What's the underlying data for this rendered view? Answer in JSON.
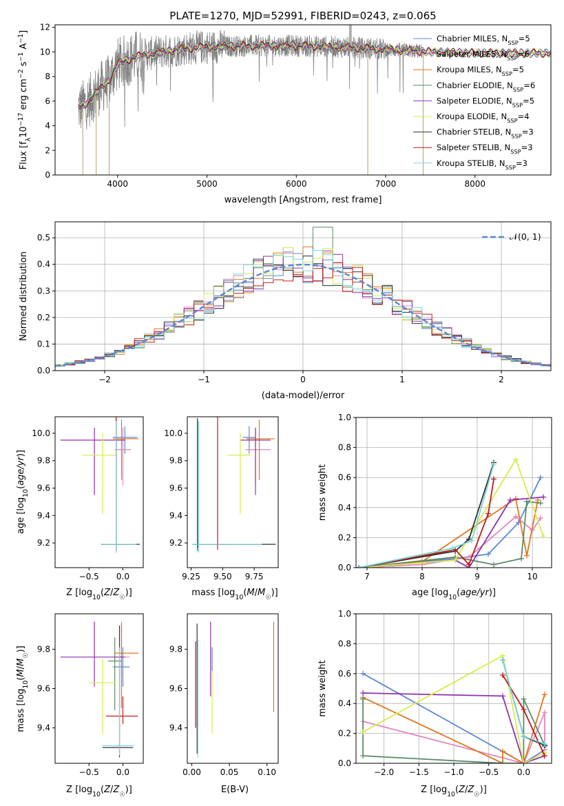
{
  "title": "PLATE=1270, MJD=52991, FIBERID=0243, z=0.065",
  "colors": {
    "Chabrier MILES": "#5b87d6",
    "Salpeter MILES": "#e586b8",
    "Kroupa MILES": "#e0771e",
    "Chabrier ELODIE": "#5a8a64",
    "Salpeter ELODIE": "#8e2fae",
    "Kroupa ELODIE": "#d8ec4c",
    "Chabrier STELIB": "#303030",
    "Salpeter STELIB": "#c21818",
    "Kroupa STELIB": "#78d5da",
    "data": "#808080",
    "gauss": "#5b87d6"
  },
  "chart_data": [
    {
      "id": "spectrum",
      "type": "line",
      "xlabel": "wavelength [Angstrom, rest frame]",
      "ylabel": "Flux [f_λ10^-17 erg cm^-2 s^-1 A^-1]",
      "xlim": [
        3300,
        8850
      ],
      "ylim": [
        0,
        12.2
      ],
      "xticks": [
        4000,
        5000,
        6000,
        7000,
        8000
      ],
      "yticks": [
        0,
        2,
        4,
        6,
        8,
        10,
        12
      ],
      "legend_loc": "right",
      "legend": [
        {
          "name": "Chabrier MILES",
          "nssp": "5"
        },
        {
          "name": "Salpeter MILES",
          "nssp": "6"
        },
        {
          "name": "Kroupa MILES",
          "nssp": "5"
        },
        {
          "name": "Chabrier ELODIE",
          "nssp": "6"
        },
        {
          "name": "Salpeter ELODIE",
          "nssp": "5"
        },
        {
          "name": "Kroupa ELODIE",
          "nssp": "4"
        },
        {
          "name": "Chabrier STELIB",
          "nssp": "3"
        },
        {
          "name": "Salpeter STELIB",
          "nssp": "3"
        },
        {
          "name": "Kroupa STELIB",
          "nssp": "3"
        }
      ],
      "continuum": {
        "x": [
          3600,
          3700,
          3800,
          3900,
          4000,
          4200,
          4400,
          4600,
          4800,
          5000,
          5500,
          6000,
          6500,
          7000,
          7500,
          8000,
          8500,
          8850
        ],
        "y": [
          5.5,
          6.2,
          7.0,
          7.6,
          9.0,
          9.6,
          9.9,
          10.1,
          10.3,
          10.4,
          10.5,
          10.5,
          10.4,
          10.2,
          10.0,
          9.9,
          9.9,
          9.9
        ]
      },
      "model_range": [
        3560,
        8850
      ],
      "data_range": [
        3560,
        7420
      ]
    },
    {
      "id": "residuals",
      "type": "bar",
      "xlabel": "(data-model)/error",
      "ylabel": "Normed distribution",
      "xlim": [
        -2.5,
        2.5
      ],
      "ylim": [
        0,
        0.56
      ],
      "xticks": [
        -2,
        -1,
        0,
        1,
        2
      ],
      "yticks": [
        0.0,
        0.1,
        0.2,
        0.3,
        0.4,
        0.5
      ],
      "legend_label": "𝒩(0, 1)",
      "legend_loc": "upper right",
      "bin_width": 0.1
    },
    {
      "id": "age_vs_Z",
      "type": "scatter",
      "xlabel": "Z [log10(Z/Z☉)]",
      "ylabel": "age  [log10(age/yr)]",
      "xlim": [
        -1.0,
        0.3
      ],
      "ylim": [
        9.02,
        10.12
      ],
      "xticks": [
        -0.5,
        0.0
      ],
      "yticks": [
        9.2,
        9.4,
        9.6,
        9.8,
        10.0
      ],
      "points": [
        {
          "model": "Chabrier MILES",
          "x": 0.03,
          "y": 9.97,
          "xerr": [
            0.18,
            0.18
          ],
          "yerr": [
            0.12,
            0.08
          ]
        },
        {
          "model": "Salpeter MILES",
          "x": 0.0,
          "y": 9.88,
          "xerr": [
            0.12,
            0.12
          ],
          "yerr": [
            0.26,
            0.16
          ]
        },
        {
          "model": "Kroupa MILES",
          "x": -0.02,
          "y": 9.96,
          "xerr": [
            0.12,
            0.25
          ],
          "yerr": [
            0.3,
            0.14
          ]
        },
        {
          "model": "Chabrier ELODIE",
          "x": -0.1,
          "y": 9.19,
          "xerr": [
            0.22,
            0.3
          ],
          "yerr": [
            0.05,
            0.9
          ]
        },
        {
          "model": "Salpeter ELODIE",
          "x": -0.42,
          "y": 9.95,
          "xerr": [
            0.5,
            0.45
          ],
          "yerr": [
            0.4,
            0.09
          ]
        },
        {
          "model": "Kroupa ELODIE",
          "x": -0.3,
          "y": 9.84,
          "xerr": [
            0.3,
            0.2
          ],
          "yerr": [
            0.43,
            0.16
          ]
        },
        {
          "model": "Chabrier STELIB",
          "x": -0.1,
          "y": 9.19,
          "xerr": [
            0.2,
            0.35
          ],
          "yerr": [
            0.03,
            0.92
          ]
        },
        {
          "model": "Salpeter STELIB",
          "x": -0.1,
          "y": 9.19,
          "xerr": [
            0.12,
            0.2
          ],
          "yerr": [
            0.04,
            0.93
          ]
        },
        {
          "model": "Kroupa STELIB",
          "x": -0.1,
          "y": 9.19,
          "xerr": [
            0.2,
            0.3
          ],
          "yerr": [
            0.06,
            0.9
          ]
        }
      ]
    },
    {
      "id": "age_vs_mass",
      "type": "scatter",
      "xlabel": "mass [log10(M/M☉)]",
      "ylabel": "",
      "xlim": [
        9.22,
        9.94
      ],
      "ylim": [
        9.02,
        10.12
      ],
      "xticks": [
        9.25,
        9.5,
        9.75
      ],
      "yticks": [
        9.2,
        9.4,
        9.6,
        9.8,
        10.0
      ],
      "points": [
        {
          "model": "Chabrier MILES",
          "x": 9.71,
          "y": 9.97,
          "xerr": [
            0.05,
            0.05
          ],
          "yerr": [
            0.12,
            0.08
          ]
        },
        {
          "model": "Salpeter MILES",
          "x": 9.76,
          "y": 9.88,
          "xerr": [
            0.08,
            0.12
          ],
          "yerr": [
            0.26,
            0.16
          ]
        },
        {
          "model": "Kroupa MILES",
          "x": 9.79,
          "y": 9.96,
          "xerr": [
            0.1,
            0.12
          ],
          "yerr": [
            0.3,
            0.14
          ]
        },
        {
          "model": "Chabrier ELODIE",
          "x": 9.3,
          "y": 9.19,
          "xerr": [
            0.03,
            0.5
          ],
          "yerr": [
            0.05,
            0.9
          ]
        },
        {
          "model": "Salpeter ELODIE",
          "x": 9.76,
          "y": 9.95,
          "xerr": [
            0.12,
            0.12
          ],
          "yerr": [
            0.4,
            0.09
          ]
        },
        {
          "model": "Kroupa ELODIE",
          "x": 9.64,
          "y": 9.84,
          "xerr": [
            0.1,
            0.08
          ],
          "yerr": [
            0.43,
            0.16
          ]
        },
        {
          "model": "Chabrier STELIB",
          "x": 9.3,
          "y": 9.19,
          "xerr": [
            0.04,
            0.62
          ],
          "yerr": [
            0.03,
            0.92
          ]
        },
        {
          "model": "Salpeter STELIB",
          "x": 9.46,
          "y": 9.19,
          "xerr": [
            0.04,
            0.1
          ],
          "yerr": [
            0.04,
            0.93
          ]
        },
        {
          "model": "Kroupa STELIB",
          "x": 9.31,
          "y": 9.19,
          "xerr": [
            0.05,
            0.5
          ],
          "yerr": [
            0.06,
            0.9
          ]
        }
      ]
    },
    {
      "id": "weight_vs_age",
      "type": "line",
      "xlabel": "age  [log10(age/yr)]",
      "ylabel": "mass weight",
      "xlim": [
        6.8,
        10.35
      ],
      "ylim": [
        0,
        1.0
      ],
      "xticks": [
        7,
        8,
        9,
        10
      ],
      "yticks": [
        0.0,
        0.2,
        0.4,
        0.6,
        0.8,
        1.0
      ],
      "series": [
        {
          "model": "Chabrier MILES",
          "x": [
            6.85,
            8.6,
            9.2,
            9.75,
            10.15
          ],
          "y": [
            0.0,
            0.06,
            0.09,
            0.3,
            0.6
          ]
        },
        {
          "model": "Salpeter MILES",
          "x": [
            6.85,
            8.0,
            8.85,
            9.7,
            10.0,
            10.15
          ],
          "y": [
            0.0,
            0.02,
            0.07,
            0.34,
            0.25,
            0.33
          ]
        },
        {
          "model": "Kroupa MILES",
          "x": [
            6.85,
            8.0,
            9.7,
            9.9,
            10.1
          ],
          "y": [
            0.0,
            0.04,
            0.46,
            0.08,
            0.45
          ]
        },
        {
          "model": "Chabrier ELODIE",
          "x": [
            6.85,
            8.6,
            9.3,
            9.8,
            9.9,
            10.15
          ],
          "y": [
            0.0,
            0.07,
            0.02,
            0.06,
            0.44,
            0.43
          ]
        },
        {
          "model": "Salpeter ELODIE",
          "x": [
            6.85,
            8.6,
            8.85,
            9.6,
            10.2
          ],
          "y": [
            0.0,
            0.05,
            0.0,
            0.45,
            0.47
          ]
        },
        {
          "model": "Kroupa ELODIE",
          "x": [
            6.85,
            8.6,
            9.7,
            10.2
          ],
          "y": [
            0.0,
            0.05,
            0.72,
            0.21
          ]
        },
        {
          "model": "Chabrier STELIB",
          "x": [
            6.85,
            8.6,
            8.85,
            9.3
          ],
          "y": [
            0.0,
            0.11,
            0.19,
            0.7
          ]
        },
        {
          "model": "Salpeter STELIB",
          "x": [
            6.85,
            8.6,
            8.85,
            9.2,
            9.3
          ],
          "y": [
            0.0,
            0.12,
            0.02,
            0.36,
            0.59
          ]
        },
        {
          "model": "Kroupa STELIB",
          "x": [
            6.85,
            8.55,
            8.9,
            9.3
          ],
          "y": [
            0.0,
            0.13,
            0.18,
            0.69
          ]
        }
      ]
    },
    {
      "id": "mass_vs_Z",
      "type": "scatter",
      "xlabel": "Z [log10(Z/Z☉)]",
      "ylabel": "mass [log10(M/M☉)]",
      "xlim": [
        -1.0,
        0.3
      ],
      "ylim": [
        9.22,
        9.98
      ],
      "xticks": [
        -0.5,
        0.0
      ],
      "yticks": [
        9.4,
        9.6,
        9.8
      ],
      "points": [
        {
          "model": "Chabrier MILES",
          "x": 0.0,
          "y": 9.71,
          "xerr": [
            0.15,
            0.1
          ],
          "yerr": [
            0.1,
            0.1
          ]
        },
        {
          "model": "Salpeter MILES",
          "x": -0.02,
          "y": 9.76,
          "xerr": [
            0.1,
            0.12
          ],
          "yerr": [
            0.1,
            0.18
          ]
        },
        {
          "model": "Kroupa MILES",
          "x": -0.02,
          "y": 9.78,
          "xerr": [
            0.1,
            0.25
          ],
          "yerr": [
            0.28,
            0.15
          ]
        },
        {
          "model": "Chabrier ELODIE",
          "x": -0.12,
          "y": 9.74,
          "xerr": [
            0.1,
            0.1
          ],
          "yerr": [
            0.25,
            0.12
          ]
        },
        {
          "model": "Salpeter ELODIE",
          "x": -0.42,
          "y": 9.76,
          "xerr": [
            0.5,
            0.45
          ],
          "yerr": [
            0.15,
            0.18
          ]
        },
        {
          "model": "Kroupa ELODIE",
          "x": -0.3,
          "y": 9.63,
          "xerr": [
            0.2,
            0.2
          ],
          "yerr": [
            0.26,
            0.12
          ]
        },
        {
          "model": "Chabrier STELIB",
          "x": -0.05,
          "y": 9.3,
          "xerr": [
            0.25,
            0.2
          ],
          "yerr": [
            0.05,
            0.62
          ]
        },
        {
          "model": "Salpeter STELIB",
          "x": 0.0,
          "y": 9.46,
          "xerr": [
            0.25,
            0.22
          ],
          "yerr": [
            0.04,
            0.1
          ]
        },
        {
          "model": "Kroupa STELIB",
          "x": -0.05,
          "y": 9.31,
          "xerr": [
            0.25,
            0.22
          ],
          "yerr": [
            0.05,
            0.5
          ]
        }
      ]
    },
    {
      "id": "mass_vs_EBV",
      "type": "scatter",
      "xlabel": "E(B-V)",
      "ylabel": "",
      "xlim": [
        -0.006,
        0.115
      ],
      "ylim": [
        9.22,
        9.98
      ],
      "xticks": [
        0.0,
        0.05,
        0.1
      ],
      "yticks": [
        9.4,
        9.6,
        9.8
      ],
      "points": [
        {
          "model": "Salpeter STELIB",
          "x": 0.005,
          "y": 9.62,
          "xerr": [
            0,
            0
          ],
          "yerr": [
            0.22,
            0.22
          ]
        },
        {
          "model": "Chabrier STELIB",
          "x": 0.007,
          "y": 9.6,
          "xerr": [
            0,
            0
          ],
          "yerr": [
            0.33,
            0.33
          ]
        },
        {
          "model": "Kroupa STELIB",
          "x": 0.008,
          "y": 9.55,
          "xerr": [
            0,
            0
          ],
          "yerr": [
            0.3,
            0.3
          ]
        },
        {
          "model": "Salpeter ELODIE",
          "x": 0.025,
          "y": 9.75,
          "xerr": [
            0,
            0
          ],
          "yerr": [
            0.19,
            0.19
          ]
        },
        {
          "model": "Kroupa ELODIE",
          "x": 0.027,
          "y": 9.58,
          "xerr": [
            0,
            0
          ],
          "yerr": [
            0.21,
            0.21
          ]
        },
        {
          "model": "Chabrier MILES",
          "x": 0.027,
          "y": 9.75,
          "xerr": [
            0,
            0
          ],
          "yerr": [
            0.06,
            0.06
          ]
        },
        {
          "model": "Kroupa MILES",
          "x": 0.109,
          "y": 9.71,
          "xerr": [
            0,
            0
          ],
          "yerr": [
            0.23,
            0.23
          ]
        }
      ]
    },
    {
      "id": "weight_vs_Z",
      "type": "line",
      "xlabel": "Z [log10(Z/Z☉)]",
      "ylabel": "mass weight",
      "xlim": [
        -2.4,
        0.4
      ],
      "ylim": [
        0,
        1.0
      ],
      "xticks": [
        -2.0,
        -1.5,
        -1.0,
        -0.5,
        0.0
      ],
      "yticks": [
        0.0,
        0.2,
        0.4,
        0.6,
        0.8,
        1.0
      ],
      "series": [
        {
          "model": "Chabrier MILES",
          "x": [
            -2.3,
            0.0,
            0.3,
            0.3
          ],
          "y": [
            0.6,
            0.0,
            0.09,
            0.11
          ]
        },
        {
          "model": "Salpeter MILES",
          "x": [
            -2.3,
            0.0,
            0.3,
            0.3
          ],
          "y": [
            0.28,
            0.0,
            0.34,
            0.07
          ]
        },
        {
          "model": "Kroupa MILES",
          "x": [
            -2.3,
            -0.3,
            -0.3,
            0.0,
            0.3
          ],
          "y": [
            0.44,
            0.0,
            0.08,
            0.0,
            0.46
          ]
        },
        {
          "model": "Chabrier ELODIE",
          "x": [
            -2.3,
            -2.3,
            -0.3,
            0.0,
            0.0,
            0.3
          ],
          "y": [
            0.43,
            0.05,
            0.0,
            0.0,
            0.43,
            0.12
          ]
        },
        {
          "model": "Salpeter ELODIE",
          "x": [
            -2.3,
            -0.3,
            0.0,
            0.3
          ],
          "y": [
            0.47,
            0.45,
            0.0,
            0.05
          ]
        },
        {
          "model": "Kroupa ELODIE",
          "x": [
            -2.3,
            -0.3,
            0.0,
            0.3
          ],
          "y": [
            0.21,
            0.72,
            0.0,
            0.07
          ]
        },
        {
          "model": "Chabrier STELIB",
          "x": [
            -0.3,
            0.0,
            0.3
          ],
          "y": [
            0.69,
            0.18,
            0.12
          ]
        },
        {
          "model": "Salpeter STELIB",
          "x": [
            -0.3,
            0.0,
            0.3
          ],
          "y": [
            0.59,
            0.36,
            0.05
          ]
        },
        {
          "model": "Kroupa STELIB",
          "x": [
            -0.3,
            0.0,
            0.3
          ],
          "y": [
            0.69,
            0.18,
            0.13
          ]
        }
      ]
    }
  ]
}
